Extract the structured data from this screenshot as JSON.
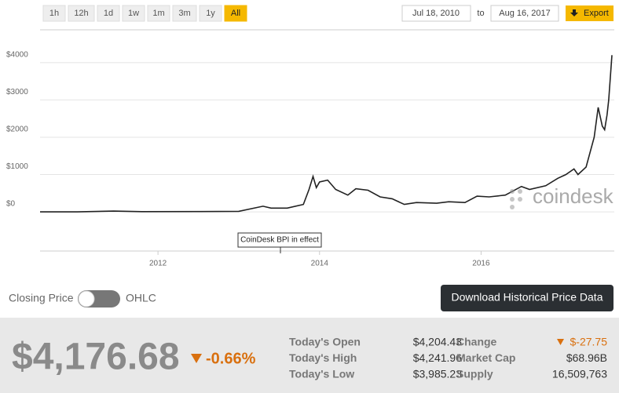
{
  "toolbar": {
    "ranges": [
      "1h",
      "12h",
      "1d",
      "1w",
      "1m",
      "3m",
      "1y",
      "All"
    ],
    "active": "All",
    "from": "Jul 18, 2010",
    "to_label": "to",
    "to": "Aug 16, 2017",
    "export": "Export"
  },
  "chart_data": {
    "type": "line",
    "x": [
      2010.54,
      2011.0,
      2011.45,
      2011.8,
      2012.5,
      2013.0,
      2013.3,
      2013.4,
      2013.6,
      2013.8,
      2013.87,
      2013.92,
      2013.96,
      2014.0,
      2014.1,
      2014.2,
      2014.35,
      2014.45,
      2014.6,
      2014.75,
      2014.9,
      2015.05,
      2015.2,
      2015.45,
      2015.6,
      2015.8,
      2015.95,
      2016.1,
      2016.3,
      2016.5,
      2016.6,
      2016.8,
      2016.95,
      2017.05,
      2017.15,
      2017.2,
      2017.3,
      2017.4,
      2017.45,
      2017.5,
      2017.53,
      2017.56,
      2017.58,
      2017.62
    ],
    "series": [
      {
        "name": "Closing Price",
        "color": "#222222",
        "values": [
          0,
          0,
          20,
          5,
          8,
          15,
          150,
          100,
          100,
          200,
          600,
          950,
          650,
          800,
          850,
          600,
          450,
          620,
          580,
          400,
          350,
          200,
          250,
          230,
          270,
          250,
          420,
          400,
          450,
          680,
          600,
          700,
          900,
          1000,
          1150,
          1000,
          1200,
          2000,
          2800,
          2300,
          2200,
          2600,
          3000,
          4200
        ]
      }
    ],
    "xlim": [
      2010.54,
      2017.62
    ],
    "xticks": [
      2012,
      2014,
      2016
    ],
    "ylim": [
      -1050,
      4880
    ],
    "yticks": [
      {
        "value": 0,
        "label": "$0"
      },
      {
        "value": 1000,
        "label": "$1000"
      },
      {
        "value": 2000,
        "label": "$2000"
      },
      {
        "value": 3000,
        "label": "$3000"
      },
      {
        "value": 4000,
        "label": "$4000"
      }
    ],
    "grid": true,
    "annotation": "CoinDesk BPI in effect",
    "watermark": "coindesk"
  },
  "controls": {
    "left": "Closing Price",
    "right": "OHLC",
    "download": "Download Historical Price Data"
  },
  "summary": {
    "price": "$4,176.68",
    "change_pct": "-0.66%",
    "stats": [
      [
        "Today's Open",
        "$4,204.43",
        "Change",
        "$-27.75"
      ],
      [
        "Today's High",
        "$4,241.96",
        "Market Cap",
        "$68.96B"
      ],
      [
        "Today's Low",
        "$3,985.23",
        "Supply",
        "16,509,763"
      ]
    ]
  }
}
